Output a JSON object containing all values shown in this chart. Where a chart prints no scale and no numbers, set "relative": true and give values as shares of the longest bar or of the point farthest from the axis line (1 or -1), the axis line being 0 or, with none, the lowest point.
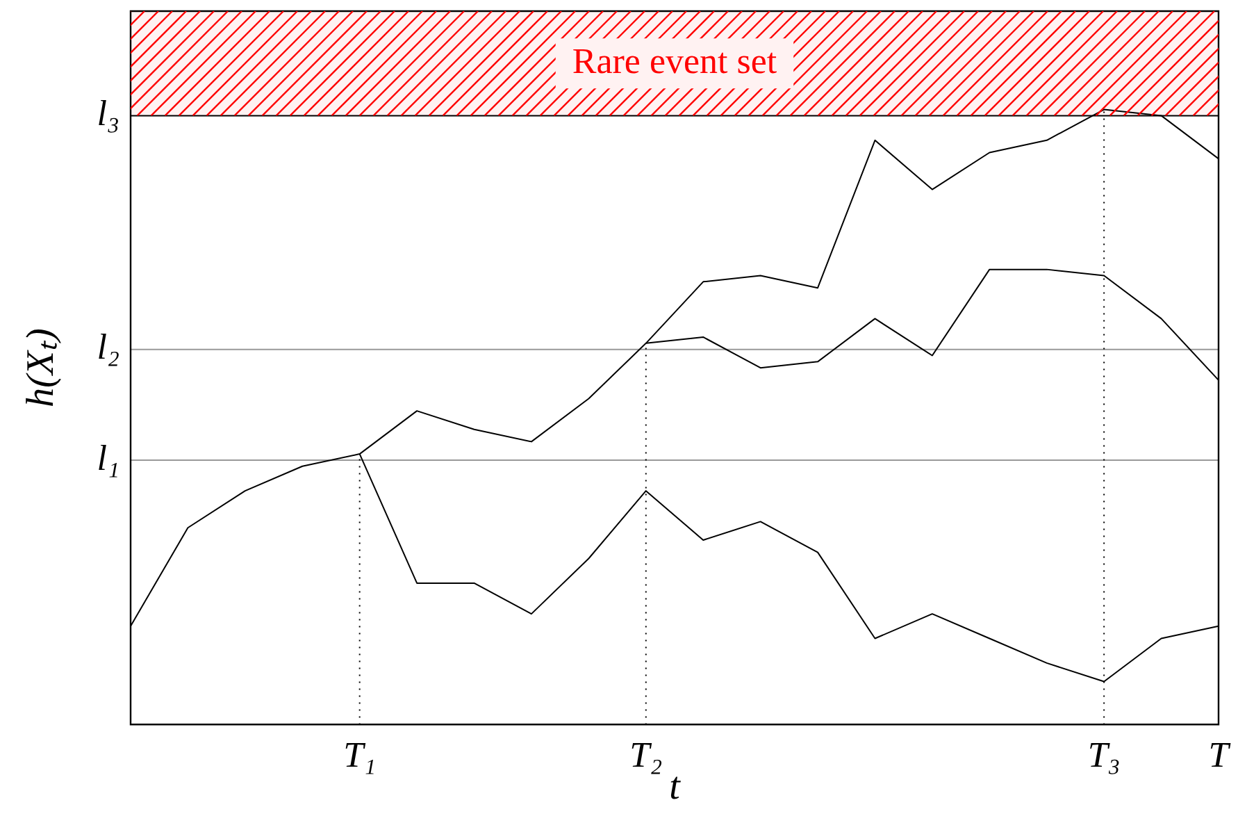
{
  "chart_data": {
    "type": "line",
    "relative": true,
    "xlabel": "t",
    "ylabel": "h(Xₜ)",
    "categories": [
      null,
      null,
      null,
      null,
      "T₁",
      null,
      null,
      null,
      null,
      "T₂",
      null,
      null,
      null,
      null,
      null,
      null,
      null,
      "T₃",
      null,
      "T"
    ],
    "series": [
      {
        "color": "#000000",
        "values": [
          0.16,
          0.32,
          0.38,
          0.42,
          0.44,
          0.51,
          0.48,
          0.46,
          0.53,
          0.62,
          0.72,
          0.73,
          0.71,
          0.95,
          0.87,
          0.93,
          0.95,
          1,
          0.99,
          0.92
        ]
      },
      {
        "color": "#000000",
        "values": [
          null,
          null,
          null,
          null,
          null,
          null,
          null,
          null,
          null,
          0.62,
          0.63,
          0.58,
          0.59,
          0.66,
          0.6,
          0.74,
          0.74,
          0.73,
          0.66,
          0.56
        ]
      },
      {
        "color": "#000000",
        "values": [
          null,
          null,
          null,
          null,
          0.44,
          0.23,
          0.23,
          0.18,
          0.27,
          0.38,
          0.3,
          0.33,
          0.28,
          0.14,
          0.18,
          0.14,
          0.1,
          0.07,
          0.14,
          0.16
        ]
      }
    ],
    "ref_lines": [
      {
        "axis": "y",
        "value": 0.43,
        "label": "l₁",
        "color": "#999999"
      },
      {
        "axis": "y",
        "value": 0.61,
        "label": "l₂",
        "color": "#999999"
      },
      {
        "axis": "y",
        "value": 0.99,
        "label": "l₃",
        "color": "#000000"
      },
      {
        "axis": "x",
        "value": "T₁",
        "line_style": "dotted",
        "color": "#000000"
      },
      {
        "axis": "x",
        "value": "T₂",
        "line_style": "dotted",
        "color": "#000000"
      },
      {
        "axis": "x",
        "value": "T₃",
        "line_style": "dotted",
        "color": "#000000"
      }
    ],
    "bands": [
      {
        "axis": "y",
        "from": 0.99,
        "to": 1.16,
        "label": "Rare event set",
        "color": "#ff0000"
      }
    ],
    "grid": false,
    "legend": false,
    "marker": "none",
    "line_style": "solid"
  }
}
